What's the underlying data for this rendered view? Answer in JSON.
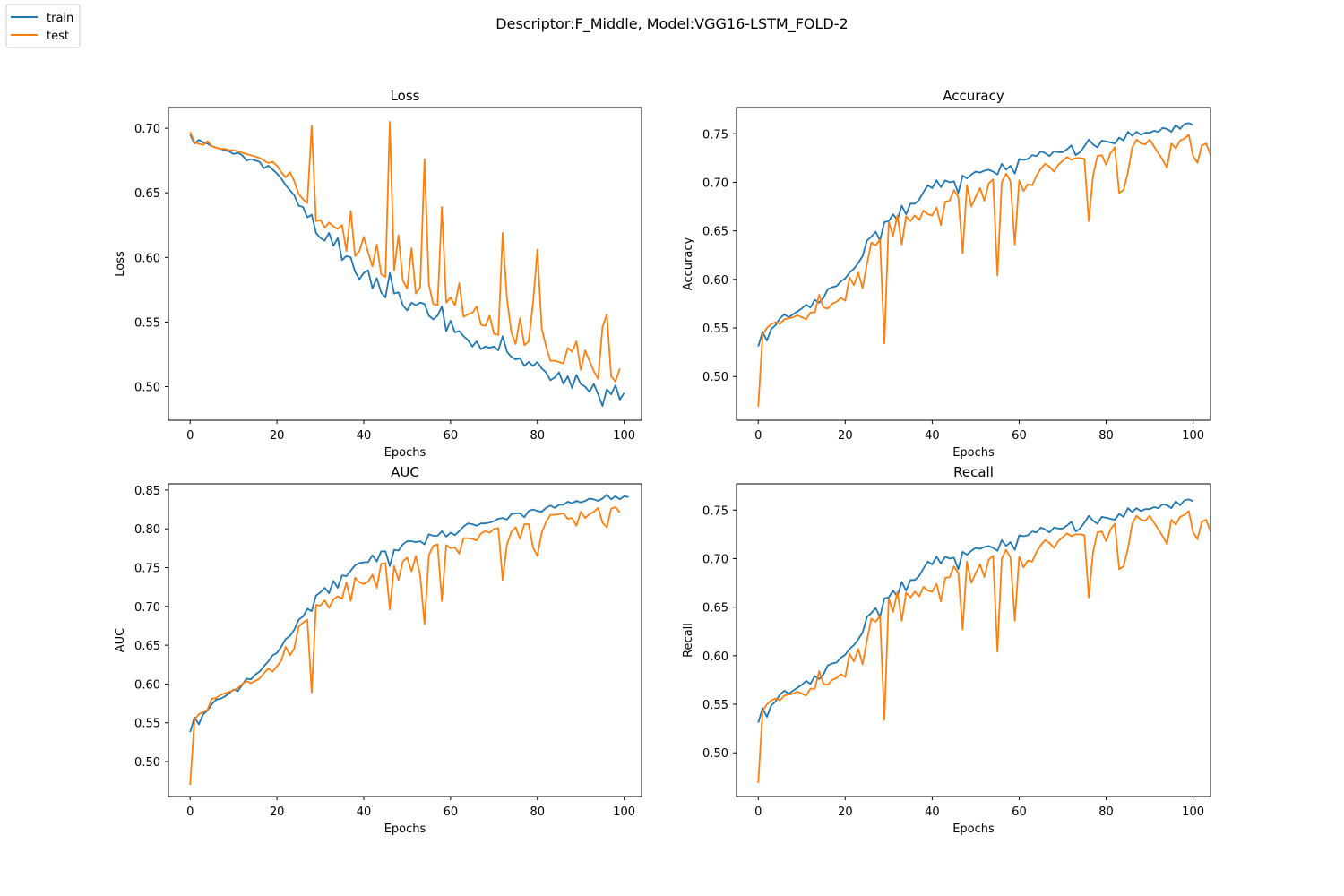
{
  "suptitle": "Descriptor:F_Middle, Model:VGG16-LSTM_FOLD-2",
  "legend": {
    "placement": "top-left",
    "entries": [
      {
        "label": "train",
        "color": "#1f77b4"
      },
      {
        "label": "test",
        "color": "#ff7f0e"
      }
    ]
  },
  "chart_data": [
    {
      "type": "line",
      "title": "Loss",
      "xlabel": "Epochs",
      "ylabel": "Loss",
      "xlim": [
        -5,
        104
      ],
      "ylim": [
        0.474,
        0.716
      ],
      "xticks": [
        0,
        20,
        40,
        60,
        80,
        100
      ],
      "yticks": [
        0.5,
        0.55,
        0.6,
        0.65,
        0.7
      ],
      "ytick_labels": [
        "0.50",
        "0.55",
        "0.60",
        "0.65",
        "0.70"
      ],
      "grid": false,
      "series": [
        {
          "name": "train",
          "color": "#1f77b4",
          "values": [
            0.695,
            0.688,
            0.691,
            0.689,
            0.688,
            0.686,
            0.685,
            0.684,
            0.683,
            0.682,
            0.68,
            0.681,
            0.679,
            0.675,
            0.676,
            0.675,
            0.674,
            0.669,
            0.671,
            0.668,
            0.665,
            0.661,
            0.656,
            0.652,
            0.648,
            0.64,
            0.639,
            0.631,
            0.633,
            0.619,
            0.615,
            0.613,
            0.619,
            0.609,
            0.615,
            0.598,
            0.601,
            0.6,
            0.589,
            0.583,
            0.588,
            0.59,
            0.576,
            0.584,
            0.573,
            0.569,
            0.588,
            0.572,
            0.573,
            0.563,
            0.559,
            0.565,
            0.563,
            0.565,
            0.564,
            0.555,
            0.552,
            0.555,
            0.562,
            0.543,
            0.551,
            0.542,
            0.543,
            0.539,
            0.536,
            0.531,
            0.535,
            0.529,
            0.531,
            0.53,
            0.531,
            0.528,
            0.539,
            0.527,
            0.523,
            0.521,
            0.522,
            0.516,
            0.519,
            0.516,
            0.519,
            0.514,
            0.511,
            0.505,
            0.507,
            0.511,
            0.502,
            0.508,
            0.499,
            0.509,
            0.502,
            0.5,
            0.496,
            0.502,
            0.494,
            0.485,
            0.498,
            0.494,
            0.501,
            0.49,
            0.495
          ]
        },
        {
          "name": "test",
          "color": "#ff7f0e",
          "values": [
            0.697,
            0.689,
            0.688,
            0.687,
            0.69,
            0.686,
            0.685,
            0.684,
            0.684,
            0.683,
            0.683,
            0.682,
            0.681,
            0.68,
            0.679,
            0.678,
            0.677,
            0.675,
            0.673,
            0.674,
            0.671,
            0.666,
            0.662,
            0.666,
            0.659,
            0.649,
            0.645,
            0.642,
            0.702,
            0.628,
            0.629,
            0.623,
            0.627,
            0.624,
            0.622,
            0.625,
            0.605,
            0.636,
            0.601,
            0.605,
            0.616,
            0.604,
            0.593,
            0.61,
            0.587,
            0.585,
            0.705,
            0.59,
            0.617,
            0.582,
            0.576,
            0.607,
            0.572,
            0.577,
            0.676,
            0.579,
            0.564,
            0.563,
            0.639,
            0.565,
            0.569,
            0.563,
            0.58,
            0.554,
            0.556,
            0.557,
            0.562,
            0.548,
            0.547,
            0.555,
            0.541,
            0.54,
            0.619,
            0.568,
            0.542,
            0.533,
            0.553,
            0.532,
            0.535,
            0.565,
            0.606,
            0.545,
            0.531,
            0.52,
            0.52,
            0.519,
            0.518,
            0.53,
            0.527,
            0.535,
            0.513,
            0.528,
            0.52,
            0.512,
            0.506,
            0.546,
            0.556,
            0.508,
            0.504,
            0.514
          ]
        }
      ]
    },
    {
      "type": "line",
      "title": "Accuracy",
      "xlabel": "Epochs",
      "ylabel": "Accuracy",
      "xlim": [
        -5,
        104
      ],
      "ylim": [
        0.455,
        0.777
      ],
      "xticks": [
        0,
        20,
        40,
        60,
        80,
        100
      ],
      "yticks": [
        0.5,
        0.55,
        0.6,
        0.65,
        0.7,
        0.75
      ],
      "ytick_labels": [
        "0.50",
        "0.55",
        "0.60",
        "0.65",
        "0.70",
        "0.75"
      ],
      "grid": false,
      "series": [
        {
          "name": "train",
          "color": "#1f77b4",
          "values": [
            0.531,
            0.546,
            0.537,
            0.549,
            0.553,
            0.56,
            0.564,
            0.561,
            0.564,
            0.567,
            0.57,
            0.574,
            0.571,
            0.579,
            0.576,
            0.581,
            0.59,
            0.592,
            0.593,
            0.598,
            0.601,
            0.607,
            0.611,
            0.617,
            0.624,
            0.64,
            0.644,
            0.649,
            0.64,
            0.659,
            0.66,
            0.667,
            0.661,
            0.676,
            0.667,
            0.678,
            0.678,
            0.682,
            0.69,
            0.697,
            0.694,
            0.702,
            0.695,
            0.702,
            0.7,
            0.701,
            0.689,
            0.707,
            0.704,
            0.708,
            0.711,
            0.71,
            0.712,
            0.713,
            0.711,
            0.708,
            0.719,
            0.713,
            0.717,
            0.709,
            0.724,
            0.723,
            0.724,
            0.728,
            0.727,
            0.732,
            0.73,
            0.727,
            0.732,
            0.731,
            0.731,
            0.734,
            0.738,
            0.728,
            0.731,
            0.737,
            0.744,
            0.739,
            0.736,
            0.743,
            0.742,
            0.741,
            0.74,
            0.746,
            0.743,
            0.752,
            0.748,
            0.752,
            0.749,
            0.751,
            0.751,
            0.753,
            0.752,
            0.756,
            0.755,
            0.752,
            0.759,
            0.755,
            0.76,
            0.761,
            0.759
          ]
        },
        {
          "name": "test",
          "color": "#ff7f0e",
          "values": [
            0.469,
            0.543,
            0.55,
            0.554,
            0.556,
            0.554,
            0.559,
            0.56,
            0.561,
            0.563,
            0.561,
            0.559,
            0.566,
            0.566,
            0.584,
            0.571,
            0.57,
            0.575,
            0.577,
            0.581,
            0.578,
            0.602,
            0.594,
            0.607,
            0.591,
            0.616,
            0.638,
            0.635,
            0.641,
            0.534,
            0.659,
            0.645,
            0.666,
            0.636,
            0.665,
            0.66,
            0.666,
            0.661,
            0.671,
            0.667,
            0.666,
            0.674,
            0.656,
            0.68,
            0.681,
            0.692,
            0.685,
            0.627,
            0.697,
            0.675,
            0.685,
            0.694,
            0.681,
            0.699,
            0.703,
            0.604,
            0.7,
            0.709,
            0.701,
            0.636,
            0.702,
            0.691,
            0.698,
            0.697,
            0.707,
            0.714,
            0.719,
            0.716,
            0.711,
            0.718,
            0.722,
            0.726,
            0.723,
            0.725,
            0.725,
            0.724,
            0.66,
            0.707,
            0.727,
            0.728,
            0.718,
            0.73,
            0.736,
            0.689,
            0.692,
            0.71,
            0.736,
            0.744,
            0.74,
            0.739,
            0.744,
            0.737,
            0.73,
            0.723,
            0.715,
            0.74,
            0.735,
            0.743,
            0.745,
            0.749,
            0.727,
            0.72,
            0.738,
            0.74,
            0.728
          ]
        }
      ]
    },
    {
      "type": "line",
      "title": "AUC",
      "xlabel": "Epochs",
      "ylabel": "AUC",
      "xlim": [
        -5,
        104
      ],
      "ylim": [
        0.455,
        0.858
      ],
      "xticks": [
        0,
        20,
        40,
        60,
        80,
        100
      ],
      "yticks": [
        0.5,
        0.55,
        0.6,
        0.65,
        0.7,
        0.75,
        0.8,
        0.85
      ],
      "ytick_labels": [
        "0.50",
        "0.55",
        "0.60",
        "0.65",
        "0.70",
        "0.75",
        "0.80",
        "0.85"
      ],
      "grid": false,
      "series": [
        {
          "name": "train",
          "color": "#1f77b4",
          "values": [
            0.538,
            0.557,
            0.548,
            0.561,
            0.566,
            0.574,
            0.58,
            0.581,
            0.584,
            0.588,
            0.593,
            0.591,
            0.599,
            0.607,
            0.606,
            0.612,
            0.616,
            0.623,
            0.629,
            0.637,
            0.64,
            0.648,
            0.658,
            0.662,
            0.67,
            0.683,
            0.687,
            0.697,
            0.694,
            0.714,
            0.718,
            0.724,
            0.717,
            0.733,
            0.724,
            0.74,
            0.739,
            0.746,
            0.753,
            0.756,
            0.757,
            0.757,
            0.766,
            0.758,
            0.771,
            0.771,
            0.752,
            0.773,
            0.772,
            0.78,
            0.784,
            0.784,
            0.783,
            0.784,
            0.78,
            0.793,
            0.791,
            0.791,
            0.797,
            0.79,
            0.795,
            0.792,
            0.797,
            0.803,
            0.807,
            0.806,
            0.804,
            0.807,
            0.807,
            0.808,
            0.81,
            0.813,
            0.814,
            0.812,
            0.819,
            0.82,
            0.82,
            0.815,
            0.823,
            0.825,
            0.823,
            0.822,
            0.827,
            0.83,
            0.827,
            0.831,
            0.831,
            0.835,
            0.833,
            0.836,
            0.834,
            0.836,
            0.839,
            0.838,
            0.836,
            0.839,
            0.844,
            0.838,
            0.842,
            0.838,
            0.842,
            0.841
          ]
        },
        {
          "name": "test",
          "color": "#ff7f0e",
          "values": [
            0.47,
            0.554,
            0.561,
            0.564,
            0.567,
            0.581,
            0.582,
            0.586,
            0.588,
            0.59,
            0.592,
            0.595,
            0.6,
            0.604,
            0.601,
            0.604,
            0.607,
            0.614,
            0.62,
            0.616,
            0.623,
            0.63,
            0.648,
            0.637,
            0.646,
            0.674,
            0.679,
            0.683,
            0.589,
            0.702,
            0.701,
            0.708,
            0.698,
            0.709,
            0.713,
            0.71,
            0.731,
            0.707,
            0.737,
            0.731,
            0.729,
            0.732,
            0.741,
            0.724,
            0.755,
            0.756,
            0.696,
            0.752,
            0.734,
            0.758,
            0.763,
            0.745,
            0.765,
            0.74,
            0.677,
            0.766,
            0.778,
            0.78,
            0.707,
            0.779,
            0.775,
            0.776,
            0.768,
            0.788,
            0.788,
            0.787,
            0.785,
            0.794,
            0.797,
            0.795,
            0.8,
            0.801,
            0.734,
            0.78,
            0.796,
            0.802,
            0.787,
            0.806,
            0.806,
            0.776,
            0.765,
            0.795,
            0.809,
            0.818,
            0.818,
            0.819,
            0.82,
            0.813,
            0.814,
            0.804,
            0.822,
            0.814,
            0.819,
            0.822,
            0.827,
            0.808,
            0.802,
            0.826,
            0.828,
            0.821
          ]
        }
      ]
    },
    {
      "type": "line",
      "title": "Recall",
      "xlabel": "Epochs",
      "ylabel": "Recall",
      "xlim": [
        -5,
        104
      ],
      "ylim": [
        0.455,
        0.777
      ],
      "xticks": [
        0,
        20,
        40,
        60,
        80,
        100
      ],
      "yticks": [
        0.5,
        0.55,
        0.6,
        0.65,
        0.7,
        0.75
      ],
      "ytick_labels": [
        "0.50",
        "0.55",
        "0.60",
        "0.65",
        "0.70",
        "0.75"
      ],
      "grid": false,
      "series": [
        {
          "name": "train",
          "color": "#1f77b4",
          "values": [
            0.531,
            0.546,
            0.537,
            0.549,
            0.553,
            0.56,
            0.564,
            0.561,
            0.564,
            0.567,
            0.57,
            0.574,
            0.571,
            0.579,
            0.576,
            0.581,
            0.59,
            0.592,
            0.593,
            0.598,
            0.601,
            0.607,
            0.611,
            0.617,
            0.624,
            0.64,
            0.644,
            0.649,
            0.64,
            0.659,
            0.66,
            0.667,
            0.661,
            0.676,
            0.667,
            0.678,
            0.678,
            0.682,
            0.69,
            0.697,
            0.694,
            0.702,
            0.695,
            0.702,
            0.7,
            0.701,
            0.689,
            0.707,
            0.704,
            0.708,
            0.711,
            0.71,
            0.712,
            0.713,
            0.711,
            0.708,
            0.719,
            0.713,
            0.717,
            0.709,
            0.724,
            0.723,
            0.724,
            0.728,
            0.727,
            0.732,
            0.73,
            0.727,
            0.732,
            0.731,
            0.731,
            0.734,
            0.738,
            0.728,
            0.731,
            0.737,
            0.744,
            0.739,
            0.736,
            0.743,
            0.742,
            0.741,
            0.74,
            0.746,
            0.743,
            0.752,
            0.748,
            0.752,
            0.749,
            0.751,
            0.751,
            0.753,
            0.752,
            0.756,
            0.755,
            0.752,
            0.759,
            0.755,
            0.76,
            0.761,
            0.759
          ]
        },
        {
          "name": "test",
          "color": "#ff7f0e",
          "values": [
            0.469,
            0.543,
            0.55,
            0.554,
            0.556,
            0.554,
            0.559,
            0.56,
            0.561,
            0.563,
            0.561,
            0.559,
            0.566,
            0.566,
            0.584,
            0.571,
            0.57,
            0.575,
            0.577,
            0.581,
            0.578,
            0.602,
            0.594,
            0.607,
            0.591,
            0.616,
            0.638,
            0.635,
            0.641,
            0.534,
            0.659,
            0.645,
            0.666,
            0.636,
            0.665,
            0.66,
            0.666,
            0.661,
            0.671,
            0.667,
            0.666,
            0.674,
            0.656,
            0.68,
            0.681,
            0.692,
            0.685,
            0.627,
            0.697,
            0.675,
            0.685,
            0.694,
            0.681,
            0.699,
            0.703,
            0.604,
            0.7,
            0.709,
            0.701,
            0.636,
            0.702,
            0.691,
            0.698,
            0.697,
            0.707,
            0.714,
            0.719,
            0.716,
            0.711,
            0.718,
            0.722,
            0.726,
            0.723,
            0.725,
            0.725,
            0.724,
            0.66,
            0.707,
            0.727,
            0.728,
            0.718,
            0.73,
            0.736,
            0.689,
            0.692,
            0.71,
            0.736,
            0.744,
            0.74,
            0.739,
            0.744,
            0.737,
            0.73,
            0.723,
            0.715,
            0.74,
            0.735,
            0.743,
            0.745,
            0.749,
            0.727,
            0.72,
            0.738,
            0.74,
            0.728
          ]
        }
      ]
    }
  ]
}
